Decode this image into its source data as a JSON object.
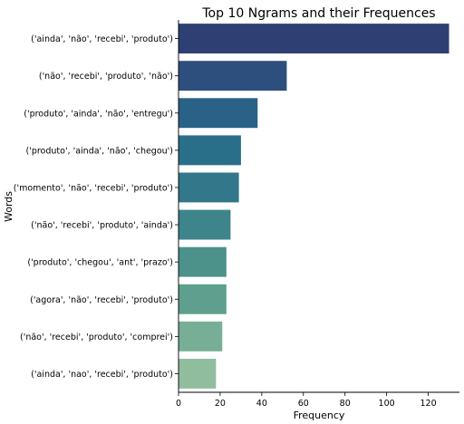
{
  "chart_data": {
    "type": "bar",
    "orientation": "horizontal",
    "title": "Top 10 Ngrams and their Frequences",
    "xlabel": "Frequency",
    "ylabel": "Words",
    "xlim": [
      0,
      135
    ],
    "xticks": [
      0,
      20,
      40,
      60,
      80,
      100,
      120
    ],
    "grid": false,
    "categories": [
      "('ainda', 'não', 'recebi', 'produto')",
      "('não', 'recebi', 'produto', 'não')",
      "('produto', 'ainda', 'não', 'entregu')",
      "('produto', 'ainda', 'não', 'chegou')",
      "('momento', 'não', 'recebi', 'produto')",
      "('não', 'recebi', 'produto', 'ainda')",
      "('produto', 'chegou', 'ant', 'prazo')",
      "('agora', 'não', 'recebi', 'produto')",
      "('não', 'recebi', 'produto', 'comprei')",
      "('ainda', 'nao', 'recebi', 'produto')"
    ],
    "values": [
      130,
      52,
      38,
      30,
      29,
      25,
      23,
      23,
      21,
      18
    ],
    "colors": [
      "#2e3f73",
      "#2d4f7e",
      "#2a6187",
      "#2a6f8a",
      "#32788a",
      "#3d858a",
      "#4c918a",
      "#5ea08d",
      "#76af95",
      "#90bd9e"
    ]
  }
}
